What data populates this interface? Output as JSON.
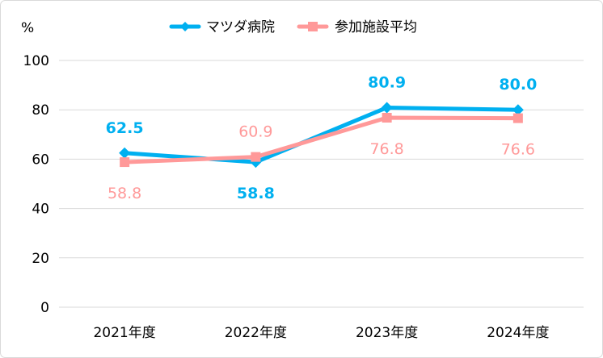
{
  "chart_data": {
    "type": "line",
    "title": "",
    "ylabel": "%",
    "xlabel": "",
    "ylim": [
      0,
      100
    ],
    "yticks": [
      0,
      20,
      40,
      60,
      80,
      100
    ],
    "ytick_labels": [
      "0",
      "20",
      "40",
      "60",
      "80",
      "100"
    ],
    "grid": true,
    "legend_position": "top-center",
    "categories": [
      "2021年度",
      "2022年度",
      "2023年度",
      "2024年度"
    ],
    "series": [
      {
        "name": "マツダ病院",
        "color": "#00B0F0",
        "marker": "diamond",
        "values": [
          62.5,
          58.8,
          80.9,
          80.0
        ],
        "labels": [
          "62.5",
          "58.8",
          "80.9",
          "80.0"
        ],
        "label_pos": [
          "above",
          "below",
          "above",
          "above"
        ]
      },
      {
        "name": "参加施設平均",
        "color": "#FF9999",
        "marker": "square",
        "values": [
          58.8,
          60.9,
          76.8,
          76.6
        ],
        "labels": [
          "58.8",
          "60.9",
          "76.8",
          "76.6"
        ],
        "label_pos": [
          "below",
          "above",
          "below",
          "below"
        ]
      }
    ]
  }
}
